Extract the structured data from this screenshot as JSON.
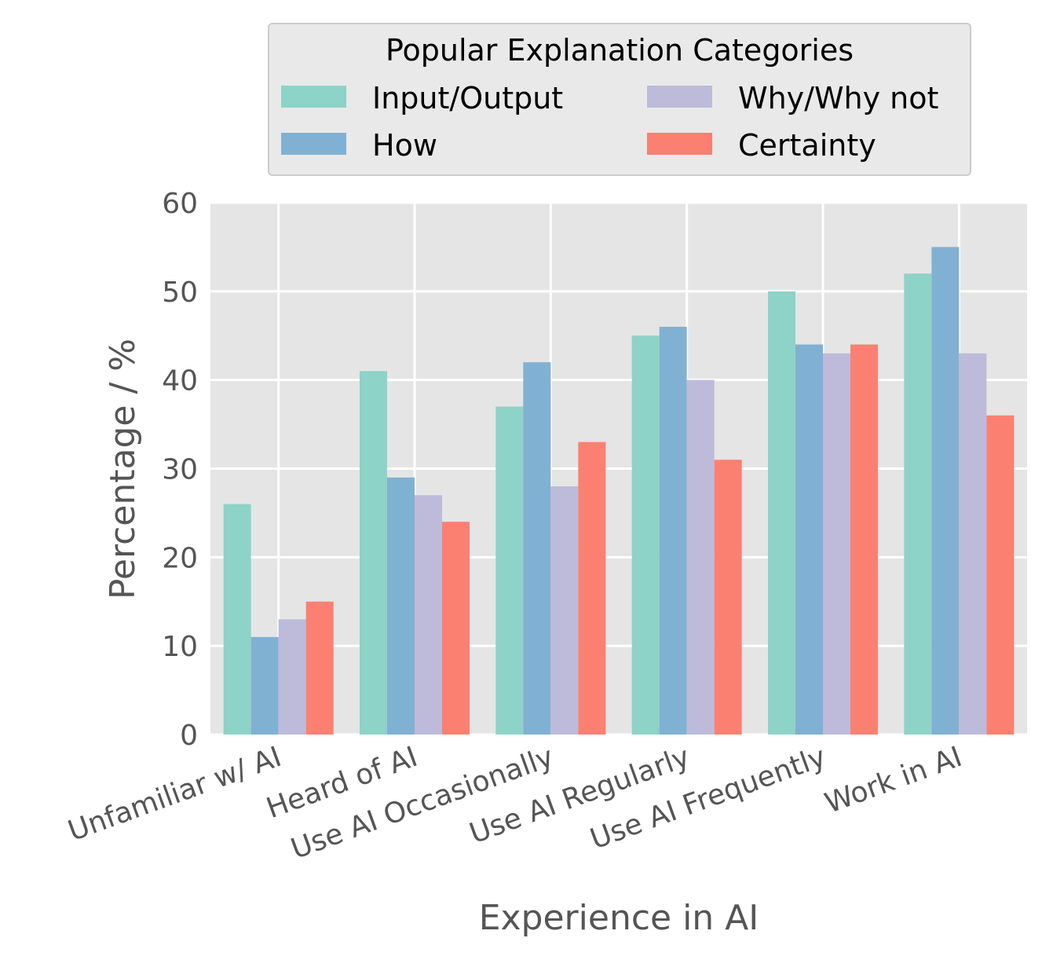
{
  "chart_data": {
    "type": "bar",
    "categories": [
      "Unfamiliar w/ AI",
      "Heard of AI",
      "Use AI Occasionally",
      "Use AI Regularly",
      "Use AI Frequently",
      "Work in AI"
    ],
    "series": [
      {
        "name": "Input/Output",
        "color": "#8dd3c7",
        "values": [
          26,
          41,
          37,
          45,
          50,
          52
        ]
      },
      {
        "name": "How",
        "color": "#80b1d3",
        "values": [
          11,
          29,
          42,
          46,
          44,
          55
        ]
      },
      {
        "name": "Why/Why not",
        "color": "#bebada",
        "values": [
          13,
          27,
          28,
          40,
          43,
          43
        ]
      },
      {
        "name": "Certainty",
        "color": "#fb8072",
        "values": [
          15,
          24,
          33,
          31,
          44,
          36
        ]
      }
    ],
    "xlabel": "Experience in AI",
    "ylabel": "Percentage / %",
    "ylim": [
      0,
      60
    ],
    "yticks": [
      "0",
      "10",
      "20",
      "30",
      "40",
      "50",
      "60"
    ],
    "legend": {
      "title": "Popular Explanation Categories",
      "placement": "top-center",
      "columns": 2
    },
    "grid": true,
    "style": {
      "plot_background": "#e5e5e5",
      "grid_color": "#ffffff",
      "legend_background": "#e9e9e9"
    }
  }
}
